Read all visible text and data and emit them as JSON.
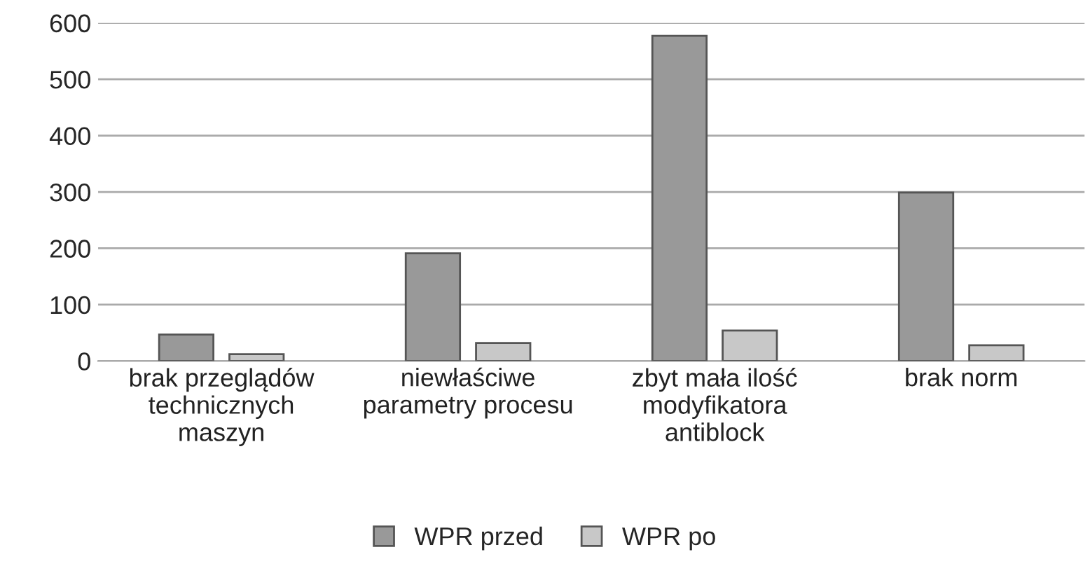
{
  "chart_data": {
    "type": "bar",
    "categories": [
      "brak przeglądów technicznych maszyn",
      "niewłaściwe parametry procesu",
      "zbyt mała ilość modyfikatora antiblock",
      "brak norm"
    ],
    "series": [
      {
        "name": "WPR przed",
        "color": "#999999",
        "values": [
          47,
          191,
          577,
          299
        ]
      },
      {
        "name": "WPR po",
        "color": "#c8c8c8",
        "values": [
          12,
          32,
          54,
          28
        ]
      }
    ],
    "ylim": [
      0,
      600
    ],
    "yticks": [
      0,
      100,
      200,
      300,
      400,
      500,
      600
    ],
    "grid": "y",
    "legend": "bottom"
  }
}
